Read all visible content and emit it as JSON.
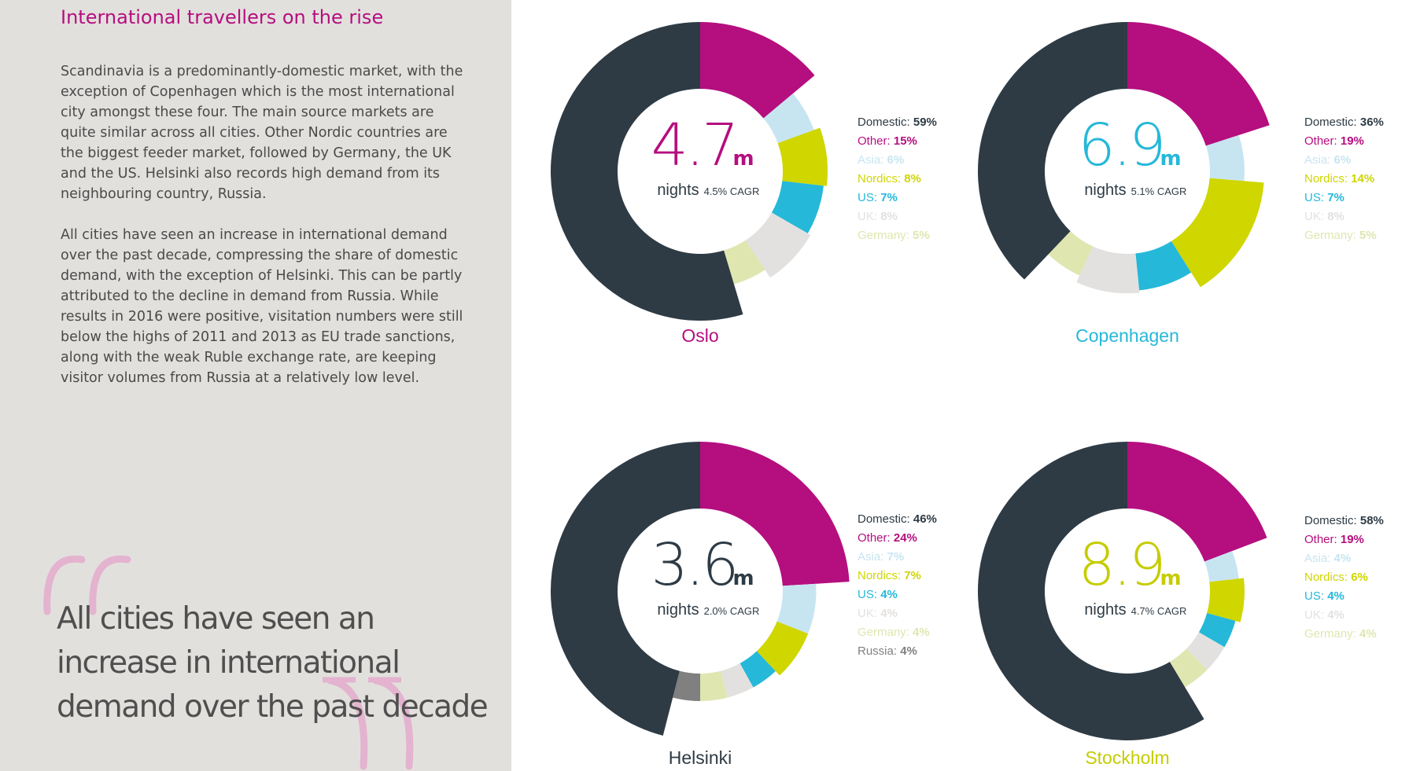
{
  "text": {
    "heading": "International travellers on the rise",
    "paragraph1": "Scandinavia is a predominantly-domestic market, with the exception of Copenhagen which is the most international city amongst these four. The main source markets are quite similar across all cities. Other Nordic countries are the biggest feeder market, followed by Germany, the UK and the US. Helsinki also records high demand from its neighbouring country, Russia.",
    "paragraph2": "All cities have seen an increase in international demand over the past decade, compressing the share of domestic demand, with the exception of Helsinki. This can be partly attributed to the decline in demand from Russia. While results in 2016 were positive, visitation numbers were still below the highs of 2011 and 2013 as EU trade sanctions, along with the weak Ruble exchange rate, are keeping visitor volumes from Russia at a relatively low level.",
    "pull_quote": "All cities have seen an increase in international demand over the past decade"
  },
  "colors": {
    "Domestic": "#2e3b45",
    "Other": "#b50e7f",
    "Asia": "#c7e5f1",
    "Nordics": "#cfd600",
    "US": "#25b8d9",
    "UK": "#e3e1df",
    "Germany": "#dfe6b0",
    "Russia": "#808080",
    "quote_mark": "#e4b3cf",
    "heading": "#b50e7f"
  },
  "chart_data": [
    {
      "type": "pie",
      "city": "Oslo",
      "city_color": "#b50e7f",
      "total_value": "4.7",
      "total_unit": "m",
      "nights_label": "nights",
      "cagr": "4.5% CAGR",
      "slices": [
        {
          "label": "Domestic",
          "value": 59,
          "pct_text": "59%"
        },
        {
          "label": "Other",
          "value": 15,
          "pct_text": "15%"
        },
        {
          "label": "Asia",
          "value": 6,
          "pct_text": "6%"
        },
        {
          "label": "Nordics",
          "value": 8,
          "pct_text": "8%"
        },
        {
          "label": "US",
          "value": 7,
          "pct_text": "7%"
        },
        {
          "label": "UK",
          "value": 8,
          "pct_text": "8%"
        },
        {
          "label": "Germany",
          "value": 5,
          "pct_text": "5%"
        }
      ]
    },
    {
      "type": "pie",
      "city": "Copenhagen",
      "city_color": "#25b8d9",
      "total_value": "6.9",
      "total_unit": "m",
      "nights_label": "nights",
      "cagr": "5.1% CAGR",
      "slices": [
        {
          "label": "Domestic",
          "value": 36,
          "pct_text": "36%"
        },
        {
          "label": "Other",
          "value": 19,
          "pct_text": "19%"
        },
        {
          "label": "Asia",
          "value": 6,
          "pct_text": "6%"
        },
        {
          "label": "Nordics",
          "value": 14,
          "pct_text": "14%"
        },
        {
          "label": "US",
          "value": 7,
          "pct_text": "7%"
        },
        {
          "label": "UK",
          "value": 8,
          "pct_text": "8%"
        },
        {
          "label": "Germany",
          "value": 5,
          "pct_text": "5%"
        }
      ]
    },
    {
      "type": "pie",
      "city": "Helsinki",
      "city_color": "#2e3b45",
      "total_value": "3.6",
      "total_unit": "m",
      "nights_label": "nights",
      "cagr": "2.0% CAGR",
      "slices": [
        {
          "label": "Domestic",
          "value": 46,
          "pct_text": "46%"
        },
        {
          "label": "Other",
          "value": 24,
          "pct_text": "24%"
        },
        {
          "label": "Asia",
          "value": 7,
          "pct_text": "7%"
        },
        {
          "label": "Nordics",
          "value": 7,
          "pct_text": "7%"
        },
        {
          "label": "US",
          "value": 4,
          "pct_text": "4%"
        },
        {
          "label": "UK",
          "value": 4,
          "pct_text": "4%"
        },
        {
          "label": "Germany",
          "value": 4,
          "pct_text": "4%"
        },
        {
          "label": "Russia",
          "value": 4,
          "pct_text": "4%"
        }
      ]
    },
    {
      "type": "pie",
      "city": "Stockholm",
      "city_color": "#c5cc00",
      "total_value": "8.9",
      "total_unit": "m",
      "nights_label": "nights",
      "cagr": "4.7% CAGR",
      "slices": [
        {
          "label": "Domestic",
          "value": 58,
          "pct_text": "58%"
        },
        {
          "label": "Other",
          "value": 19,
          "pct_text": "19%"
        },
        {
          "label": "Asia",
          "value": 4,
          "pct_text": "4%"
        },
        {
          "label": "Nordics",
          "value": 6,
          "pct_text": "6%"
        },
        {
          "label": "US",
          "value": 4,
          "pct_text": "4%"
        },
        {
          "label": "UK",
          "value": 4,
          "pct_text": "4%"
        },
        {
          "label": "Germany",
          "value": 4,
          "pct_text": "4%"
        }
      ]
    }
  ]
}
